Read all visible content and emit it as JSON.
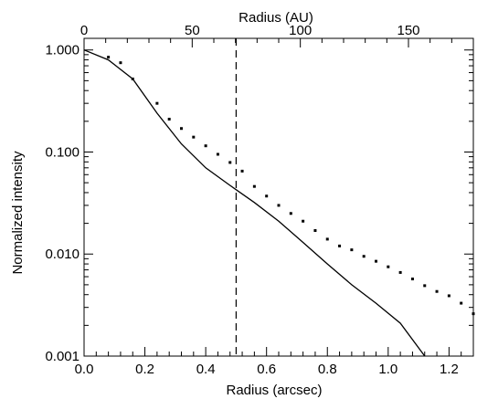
{
  "chart_data": {
    "type": "line",
    "title": "",
    "xlabel": "Radius (arcsec)",
    "x2label": "Radius (AU)",
    "ylabel": "Normalized intensity",
    "xlim": [
      0.0,
      1.28
    ],
    "ylim": [
      0.001,
      1.3
    ],
    "yscale": "log",
    "x2lim_au": [
      0,
      180
    ],
    "xticks": [
      0.0,
      0.2,
      0.4,
      0.6,
      0.8,
      1.0,
      1.2
    ],
    "xtick_labels": [
      "0.0",
      "0.2",
      "0.4",
      "0.6",
      "0.8",
      "1.0",
      "1.2"
    ],
    "x2ticks": [
      0,
      50,
      100,
      150
    ],
    "x2tick_labels": [
      "0",
      "50",
      "100",
      "150"
    ],
    "yticks": [
      0.001,
      0.01,
      0.1,
      1.0
    ],
    "ytick_labels": [
      "0.001",
      "0.010",
      "0.100",
      "1.000"
    ],
    "vline_x": 0.5,
    "grid": false,
    "series": [
      {
        "style": "solid-line",
        "color": "#000000",
        "x": [
          0.0,
          0.08,
          0.16,
          0.24,
          0.32,
          0.4,
          0.48,
          0.56,
          0.64,
          0.72,
          0.8,
          0.88,
          0.96,
          1.04,
          1.12
        ],
        "y": [
          1.0,
          0.8,
          0.52,
          0.24,
          0.12,
          0.07,
          0.047,
          0.032,
          0.021,
          0.013,
          0.008,
          0.005,
          0.0033,
          0.0021,
          0.001
        ]
      },
      {
        "style": "dots",
        "color": "#000000",
        "x": [
          0.08,
          0.12,
          0.16,
          0.24,
          0.28,
          0.32,
          0.36,
          0.4,
          0.44,
          0.48,
          0.52,
          0.56,
          0.6,
          0.64,
          0.68,
          0.72,
          0.76,
          0.8,
          0.84,
          0.88,
          0.92,
          0.96,
          1.0,
          1.04,
          1.08,
          1.12,
          1.16,
          1.2,
          1.24,
          1.28
        ],
        "y": [
          0.85,
          0.75,
          0.52,
          0.3,
          0.21,
          0.17,
          0.14,
          0.115,
          0.095,
          0.079,
          0.065,
          0.046,
          0.037,
          0.03,
          0.025,
          0.021,
          0.017,
          0.014,
          0.012,
          0.011,
          0.0095,
          0.0085,
          0.0075,
          0.0066,
          0.0057,
          0.0049,
          0.0043,
          0.0039,
          0.0033,
          0.0026
        ]
      }
    ]
  }
}
